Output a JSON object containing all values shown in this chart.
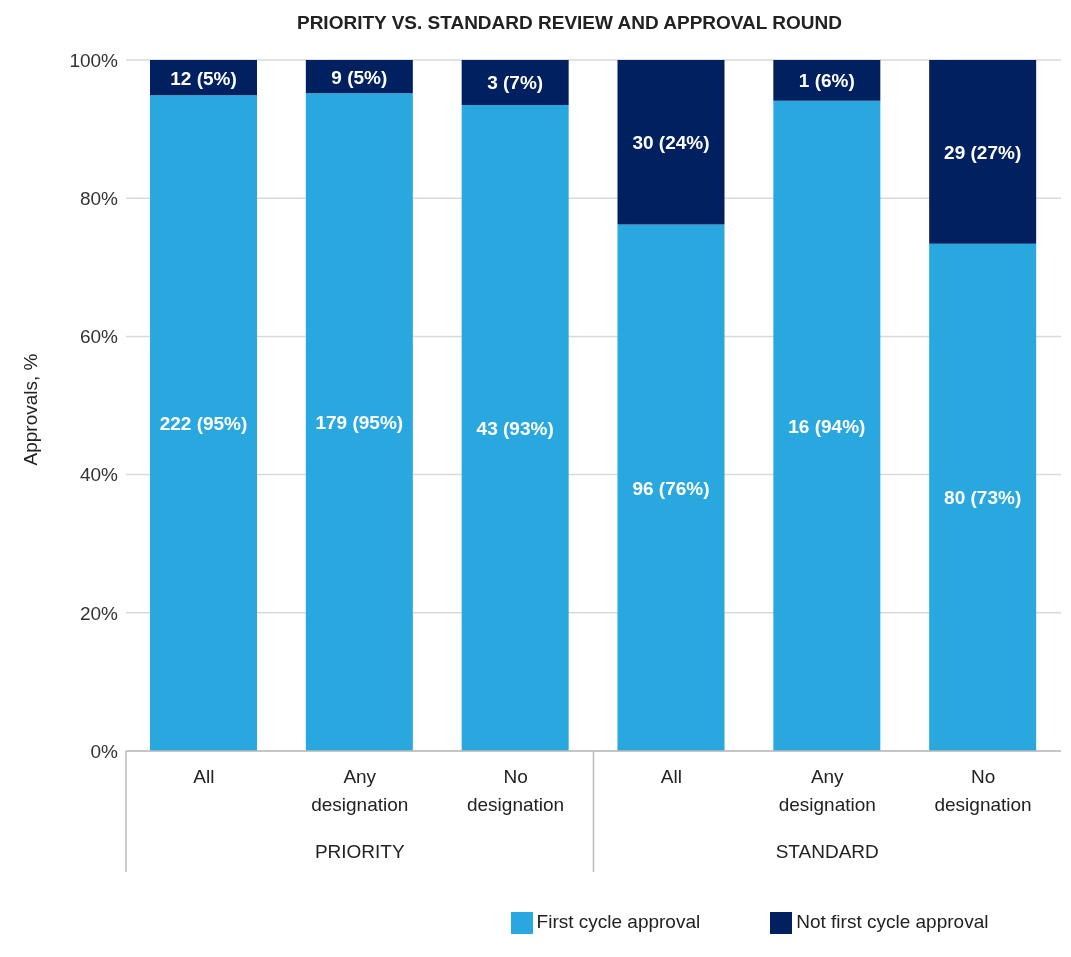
{
  "chart_data": {
    "type": "bar",
    "title": "PRIORITY VS. STANDARD REVIEW AND APPROVAL ROUND",
    "ylabel": "Approvals, %",
    "categories": [
      "All",
      "Any designation",
      "No designation",
      "All",
      "Any designation",
      "No designation"
    ],
    "annotations": [
      "PRIORITY",
      "STANDARD"
    ],
    "stacked": true,
    "series": [
      {
        "name": "First cycle approval",
        "color": "#29a8e0",
        "values": [
          94.9,
          95.2,
          93.5,
          76.2,
          94.1,
          73.4
        ],
        "value_labels": [
          "222 (95%)",
          "179 (95%)",
          "43 (93%)",
          "96 (76%)",
          "16 (94%)",
          "80 (73%)"
        ]
      },
      {
        "name": "Not first cycle approval",
        "color": "#002060",
        "values": [
          5.1,
          4.8,
          6.5,
          23.8,
          5.9,
          26.6
        ],
        "value_labels": [
          "12 (5%)",
          "9 (5%)",
          "3 (7%)",
          "30 (24%)",
          "1 (6%)",
          "29 (27%)"
        ]
      }
    ],
    "ylim": [
      0,
      100
    ],
    "yticks": [
      {
        "value": 0,
        "label": "0%"
      },
      {
        "value": 20,
        "label": "20%"
      },
      {
        "value": 40,
        "label": "40%"
      },
      {
        "value": 60,
        "label": "60%"
      },
      {
        "value": 80,
        "label": "80%"
      },
      {
        "value": 100,
        "label": "100%"
      }
    ],
    "grid": "y",
    "legend": "bottom"
  }
}
